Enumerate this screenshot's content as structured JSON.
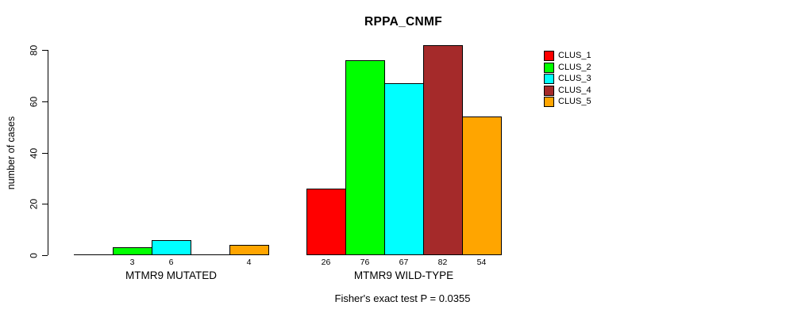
{
  "title": "RPPA_CNMF",
  "y_axis": {
    "label": "number of cases",
    "ticks": [
      0,
      20,
      40,
      60,
      80
    ]
  },
  "footer": "Fisher's exact test P = 0.0355",
  "chart_data": {
    "type": "bar",
    "title": "RPPA_CNMF",
    "xlabel": "",
    "ylabel": "number of cases",
    "ylim": [
      0,
      82
    ],
    "yticks": [
      0,
      20,
      40,
      60,
      80
    ],
    "grid": false,
    "legend_position": "top-right",
    "series": [
      "CLUS_1",
      "CLUS_2",
      "CLUS_3",
      "CLUS_4",
      "CLUS_5"
    ],
    "series_colors": [
      "#FF0000",
      "#00FF00",
      "#00FFFF",
      "#A52A2A",
      "#FFA500"
    ],
    "groups": [
      {
        "label": "MTMR9 MUTATED",
        "values": [
          0,
          3,
          6,
          0,
          4
        ]
      },
      {
        "label": "MTMR9 WILD-TYPE",
        "values": [
          26,
          76,
          67,
          82,
          54
        ]
      }
    ],
    "value_labels_shown_for_nonzero_bars_only": true,
    "annotation": "Fisher's exact test P = 0.0355"
  }
}
